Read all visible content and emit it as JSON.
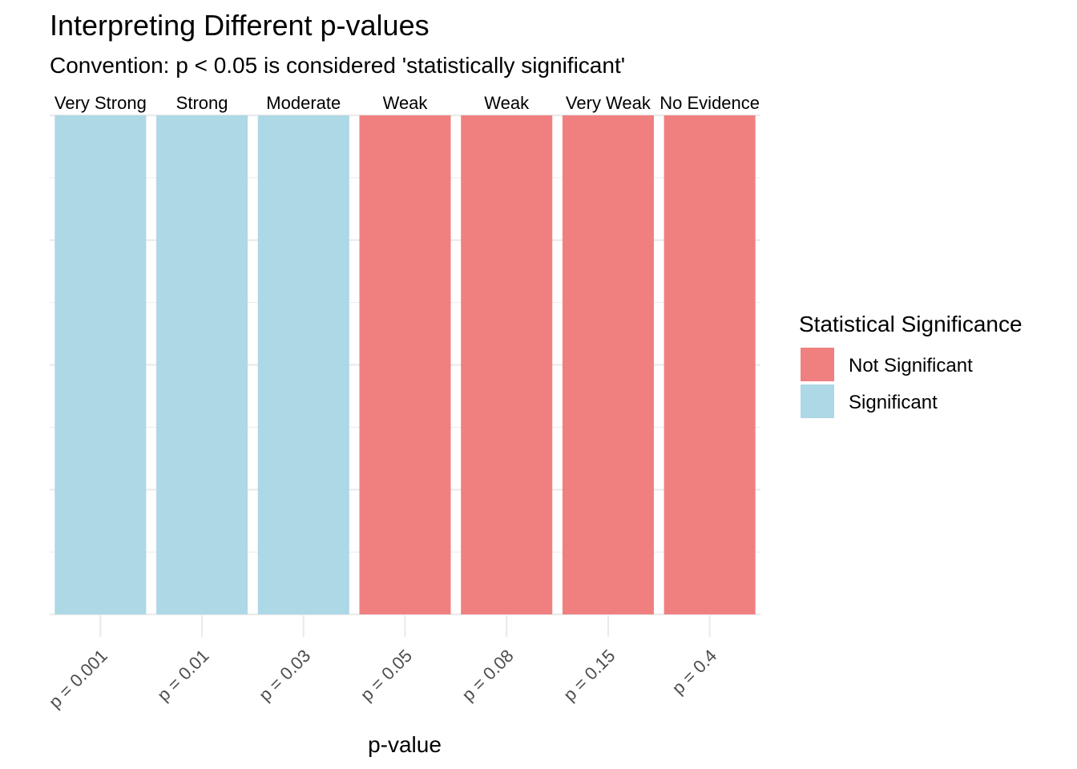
{
  "chart_data": {
    "type": "bar",
    "title": "Interpreting Different p-values",
    "subtitle": "Convention: p < 0.05 is considered 'statistically significant'",
    "xlabel": "p-value",
    "ylabel": "",
    "categories": [
      "p = 0.001",
      "p = 0.01",
      "p = 0.03",
      "p = 0.05",
      "p = 0.08",
      "p = 0.15",
      "p = 0.4"
    ],
    "values": [
      1,
      1,
      1,
      1,
      1,
      1,
      1
    ],
    "ylim": [
      0,
      1
    ],
    "bar_labels": [
      "Very Strong",
      "Strong",
      "Moderate",
      "Weak",
      "Weak",
      "Very Weak",
      "No Evidence"
    ],
    "groups": [
      "Significant",
      "Significant",
      "Significant",
      "Not Significant",
      "Not Significant",
      "Not Significant",
      "Not Significant"
    ],
    "grid": true,
    "x_tick_rotation": 45,
    "legend": {
      "title": "Statistical Significance",
      "placement": "right",
      "entries": [
        {
          "name": "Not Significant",
          "color": "#F08080"
        },
        {
          "name": "Significant",
          "color": "#ADD8E6"
        }
      ]
    }
  }
}
